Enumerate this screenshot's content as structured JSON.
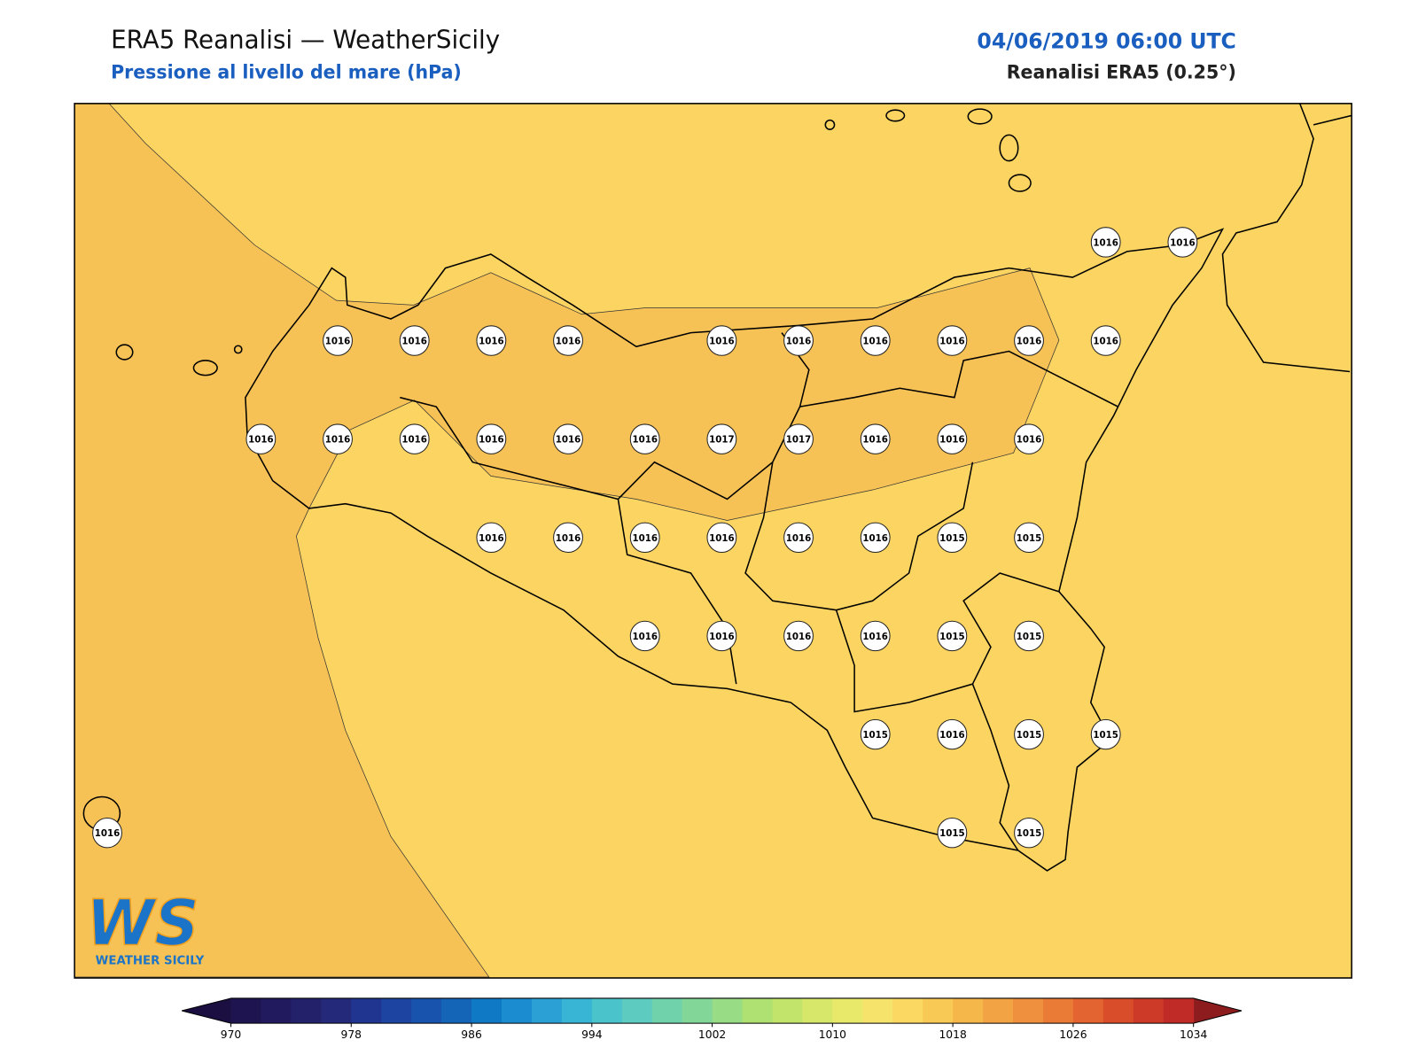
{
  "header": {
    "title": "ERA5 Reanalisi — WeatherSicily",
    "subtitle": "Pressione al livello del mare (hPa)",
    "datetime": "04/06/2019 06:00 UTC",
    "source": "Reanalisi ERA5 (0.25°)"
  },
  "stations": [
    [
      null,
      null,
      null,
      null,
      null,
      null,
      null,
      null,
      null,
      null,
      null,
      null,
      null,
      1016,
      1016
    ],
    [
      null,
      null,
      null,
      1016,
      1016,
      1016,
      1016,
      null,
      1016,
      1016,
      1016,
      1016,
      1016,
      1016,
      null
    ],
    [
      null,
      null,
      1016,
      1016,
      1016,
      1016,
      1016,
      1016,
      1017,
      1017,
      1016,
      1016,
      1016,
      null,
      null
    ],
    [
      null,
      null,
      null,
      null,
      null,
      1016,
      1016,
      1016,
      1016,
      1016,
      1016,
      1015,
      1015,
      null,
      null
    ],
    [
      null,
      null,
      null,
      null,
      null,
      null,
      null,
      1016,
      1016,
      1016,
      1016,
      1015,
      1015,
      null,
      null
    ],
    [
      null,
      null,
      null,
      null,
      null,
      null,
      null,
      null,
      null,
      null,
      1015,
      1016,
      1015,
      1015,
      null
    ],
    [
      1016,
      null,
      null,
      null,
      null,
      null,
      null,
      null,
      null,
      null,
      null,
      1015,
      1015,
      null,
      null
    ]
  ],
  "colorbar": {
    "lim": [
      970,
      1034
    ],
    "ticks": [
      970,
      978,
      986,
      994,
      1002,
      1010,
      1018,
      1026,
      1034
    ],
    "colors": [
      "#1e1450",
      "#221a5e",
      "#24216b",
      "#25297a",
      "#1f3590",
      "#1c44a0",
      "#1853ad",
      "#1465b8",
      "#1079c5",
      "#1a8ccf",
      "#2aa0d4",
      "#38b4d4",
      "#4bc3cb",
      "#5ecbc0",
      "#6fd2ab",
      "#82d798",
      "#98dc85",
      "#aee072",
      "#c2e46a",
      "#d6e769",
      "#e8e86b",
      "#f6e36c",
      "#fad862",
      "#f9c955",
      "#f5b64a",
      "#f2a444",
      "#ef903e",
      "#ea7b37",
      "#e36430",
      "#d94d2b",
      "#cd3a28",
      "#c02a27"
    ],
    "under_color": "#1a0f40",
    "over_color": "#8c1c1e"
  },
  "logo": {
    "mark": "WS",
    "name": "WEATHER SICILY"
  }
}
